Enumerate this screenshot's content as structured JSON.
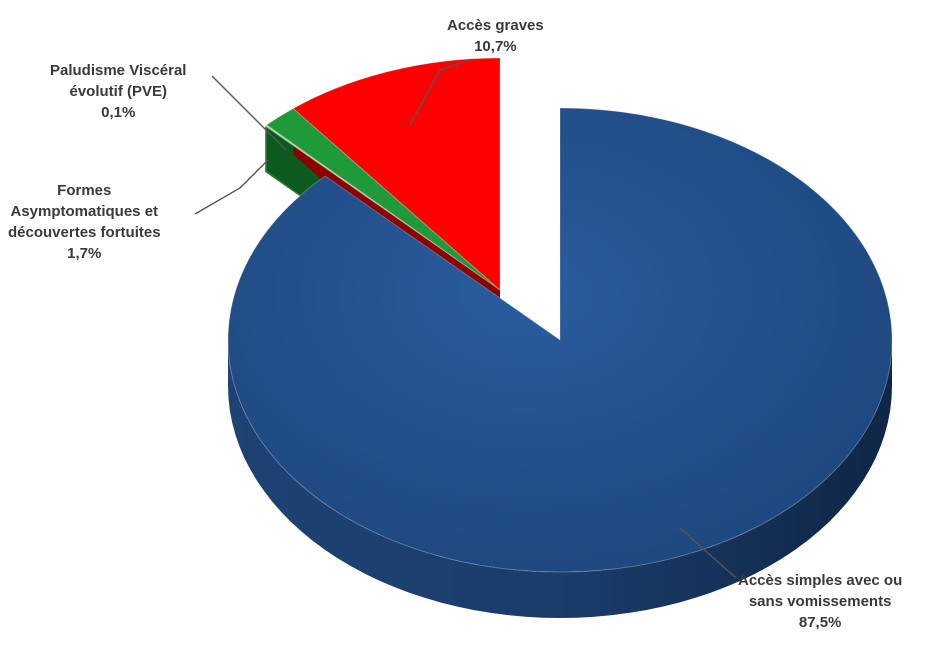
{
  "chart_data": {
    "type": "pie",
    "style": "3d-exploded",
    "slices": [
      {
        "key": "simple",
        "label_lines": [
          "Accès simples avec ou",
          "sans vomissements"
        ],
        "value_text": "87,5%",
        "value": 87.5,
        "color": "#1f4e8c",
        "side_color": "#15335c",
        "exploded": false
      },
      {
        "key": "pve",
        "label_lines": [
          "Paludisme Viscéral",
          "évolutif (PVE)"
        ],
        "value_text": "0,1%",
        "value": 0.1,
        "color": "#9dd59d",
        "side_color": "#2f7a30",
        "exploded": true
      },
      {
        "key": "asym",
        "label_lines": [
          "Formes",
          "Asymptomatiques et",
          "découvertes fortuites"
        ],
        "value_text": "1,7%",
        "value": 1.7,
        "color": "#1f9a3a",
        "side_color": "#0c5a1d",
        "exploded": true
      },
      {
        "key": "grave",
        "label_lines": [
          "Accès graves"
        ],
        "value_text": "10,7%",
        "value": 10.7,
        "color": "#ff0000",
        "side_color": "#8e0000",
        "exploded": true
      }
    ],
    "legend": "none",
    "labels": "outside-with-leader-lines"
  }
}
